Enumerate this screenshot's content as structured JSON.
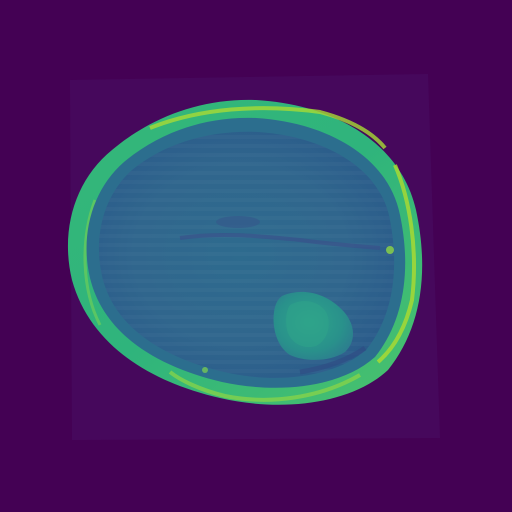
{
  "image": {
    "modality": "MRI",
    "plane": "axial",
    "subject": "brain",
    "colormap": "viridis",
    "visible_text": []
  },
  "colors": {
    "background": "#440154",
    "fov_region": "#46085c",
    "skull_outer": "#2fb47c",
    "skull_bright": "#9bd93c",
    "skull_peak": "#dde318",
    "brain_tissue": "#2f6a8d",
    "brain_dark": "#3b528b",
    "lesion": "#2a9a8a",
    "midline": "#33538b"
  }
}
